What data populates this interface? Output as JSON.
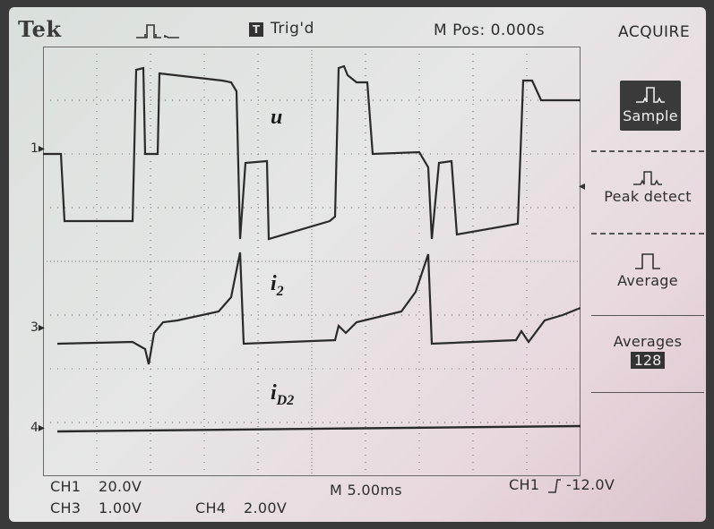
{
  "topbar": {
    "brand": "Tek",
    "trigger_box": "T",
    "trigger_status": "Trig'd",
    "mpos": "M Pos: 0.000s",
    "menu_title": "ACQUIRE"
  },
  "menu": {
    "items": [
      {
        "label": "Sample",
        "selected": true,
        "icon": "sample-waveform-icon"
      },
      {
        "label": "Peak detect",
        "selected": false,
        "icon": "peak-detect-icon"
      },
      {
        "label": "Average",
        "selected": false,
        "icon": "average-pulse-icon"
      },
      {
        "label": "Averages",
        "value": "128"
      }
    ]
  },
  "traces": {
    "u_label": "u",
    "i2_label": "i",
    "i2_sub": "2",
    "iD2_label": "i",
    "iD2_sub": "D2",
    "ch1_marker": "1",
    "ch3_marker": "3",
    "ch4_marker": "4"
  },
  "bottom": {
    "ch1": "CH1",
    "ch1_scale": "20.0V",
    "ch3": "CH3",
    "ch3_scale": "1.00V",
    "ch4": "CH4",
    "ch4_scale": "2.00V",
    "timebase": "M 5.00ms",
    "trigger_info": "CH1",
    "trigger_level": "-12.0V"
  },
  "colors": {
    "trace": "#2a2a2a",
    "grid": "#6a6a6a",
    "selected_bg": "#3a3a3a"
  }
}
